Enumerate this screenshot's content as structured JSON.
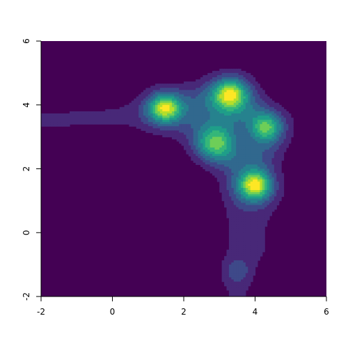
{
  "chart_data": {
    "type": "heatmap",
    "subtype": "filled-contour",
    "colormap": "viridis",
    "xlim": [
      -2,
      6
    ],
    "ylim": [
      -2,
      6
    ],
    "x_ticks": [
      -2,
      0,
      2,
      4,
      6
    ],
    "y_ticks": [
      -2,
      0,
      2,
      4,
      6
    ],
    "x_tick_labels": [
      "-2",
      "0",
      "2",
      "4",
      "6"
    ],
    "y_tick_labels": [
      "-2",
      "0",
      "2",
      "4",
      "6"
    ],
    "levels": 10,
    "grid": false,
    "peaks": [
      {
        "x": 1.5,
        "y": 3.9,
        "intensity": 1.0
      },
      {
        "x": 4.0,
        "y": 1.5,
        "intensity": 1.0
      },
      {
        "x": 3.3,
        "y": 4.3,
        "intensity": 0.68
      },
      {
        "x": 4.3,
        "y": 3.3,
        "intensity": 0.62
      },
      {
        "x": 3.5,
        "y": -1.2,
        "intensity": 0.32
      }
    ],
    "colors": [
      "#440154",
      "#482878",
      "#3e4989",
      "#31688e",
      "#26828e",
      "#1f9e89",
      "#35b779",
      "#6ece58",
      "#b5de2b",
      "#fde725"
    ]
  }
}
